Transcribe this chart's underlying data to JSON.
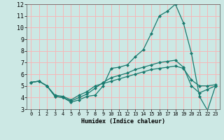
{
  "xlabel": "Humidex (Indice chaleur)",
  "background_color": "#cce8e4",
  "grid_color": "#f5b8b8",
  "line_color": "#1a7a6e",
  "xlim": [
    -0.5,
    23.5
  ],
  "ylim": [
    3,
    12
  ],
  "xticks": [
    0,
    1,
    2,
    3,
    4,
    5,
    6,
    7,
    8,
    9,
    10,
    11,
    12,
    13,
    14,
    15,
    16,
    17,
    18,
    19,
    20,
    21,
    22,
    23
  ],
  "yticks": [
    3,
    4,
    5,
    6,
    7,
    8,
    9,
    10,
    11,
    12
  ],
  "line1_x": [
    0,
    1,
    2,
    3,
    4,
    5,
    6,
    7,
    8,
    9,
    10,
    11,
    12,
    13,
    14,
    15,
    16,
    17,
    18,
    19,
    20,
    21,
    22,
    23
  ],
  "line1_y": [
    5.3,
    5.4,
    5.0,
    4.1,
    4.0,
    3.6,
    3.8,
    4.1,
    4.2,
    5.0,
    6.5,
    6.6,
    6.8,
    7.5,
    8.1,
    9.5,
    11.0,
    11.4,
    12.0,
    10.4,
    7.8,
    4.1,
    2.9,
    5.0
  ],
  "line2_x": [
    0,
    1,
    2,
    3,
    4,
    5,
    6,
    7,
    8,
    9,
    10,
    11,
    12,
    13,
    14,
    15,
    16,
    17,
    18,
    19,
    20,
    21,
    22,
    23
  ],
  "line2_y": [
    5.3,
    5.4,
    5.0,
    4.1,
    4.0,
    3.7,
    4.0,
    4.3,
    4.8,
    5.3,
    5.7,
    5.9,
    6.1,
    6.4,
    6.6,
    6.8,
    7.0,
    7.1,
    7.2,
    6.6,
    5.0,
    4.4,
    4.7,
    5.0
  ],
  "line3_x": [
    0,
    1,
    2,
    3,
    4,
    5,
    6,
    7,
    8,
    9,
    10,
    11,
    12,
    13,
    14,
    15,
    16,
    17,
    18,
    19,
    20,
    21,
    22,
    23
  ],
  "line3_y": [
    5.3,
    5.4,
    5.0,
    4.2,
    4.1,
    3.8,
    4.2,
    4.5,
    5.0,
    5.2,
    5.4,
    5.6,
    5.8,
    6.0,
    6.2,
    6.4,
    6.5,
    6.6,
    6.7,
    6.5,
    5.5,
    5.0,
    5.0,
    5.1
  ]
}
